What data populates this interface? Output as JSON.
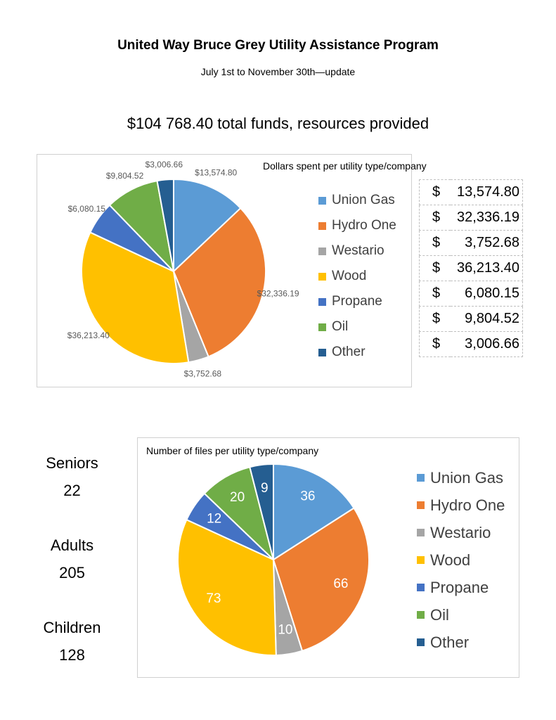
{
  "header": {
    "title": "United Way Bruce Grey Utility Assistance Program",
    "subtitle": "July 1st to November 30th—update",
    "total": "$104 768.40 total funds, resources provided"
  },
  "colors": {
    "Union Gas": "#5b9bd5",
    "Hydro One": "#ed7d31",
    "Westario": "#a5a5a5",
    "Wood": "#ffc000",
    "Propane": "#4472c4",
    "Oil": "#70ad47",
    "Other": "#255e91"
  },
  "chart_data": [
    {
      "type": "pie",
      "title": "Dollars spent per utility type/company",
      "categories": [
        "Union Gas",
        "Hydro One",
        "Westario",
        "Wood",
        "Propane",
        "Oil",
        "Other"
      ],
      "values": [
        13574.8,
        32336.19,
        3752.68,
        36213.4,
        6080.15,
        9804.52,
        3006.66
      ],
      "data_labels": [
        "$13,574.80",
        "$32,336.19",
        "$3,752.68",
        "$36,213.40",
        "$6,080.15",
        "$9,804.52",
        "$3,006.66"
      ],
      "legend": "right",
      "table": [
        {
          "currency": "$",
          "amount": "13,574.80"
        },
        {
          "currency": "$",
          "amount": "32,336.19"
        },
        {
          "currency": "$",
          "amount": "3,752.68"
        },
        {
          "currency": "$",
          "amount": "36,213.40"
        },
        {
          "currency": "$",
          "amount": "6,080.15"
        },
        {
          "currency": "$",
          "amount": "9,804.52"
        },
        {
          "currency": "$",
          "amount": "3,006.66"
        }
      ]
    },
    {
      "type": "pie",
      "title": "Number of files per utility type/company",
      "categories": [
        "Union Gas",
        "Hydro One",
        "Westario",
        "Wood",
        "Propane",
        "Oil",
        "Other"
      ],
      "values": [
        36,
        66,
        10,
        73,
        12,
        20,
        9
      ],
      "data_labels": [
        "36",
        "66",
        "10",
        "73",
        "12",
        "20",
        "9"
      ],
      "legend": "right"
    }
  ],
  "people": [
    {
      "label": "Seniors",
      "count": "22"
    },
    {
      "label": "Adults",
      "count": "205"
    },
    {
      "label": "Children",
      "count": "128"
    }
  ]
}
